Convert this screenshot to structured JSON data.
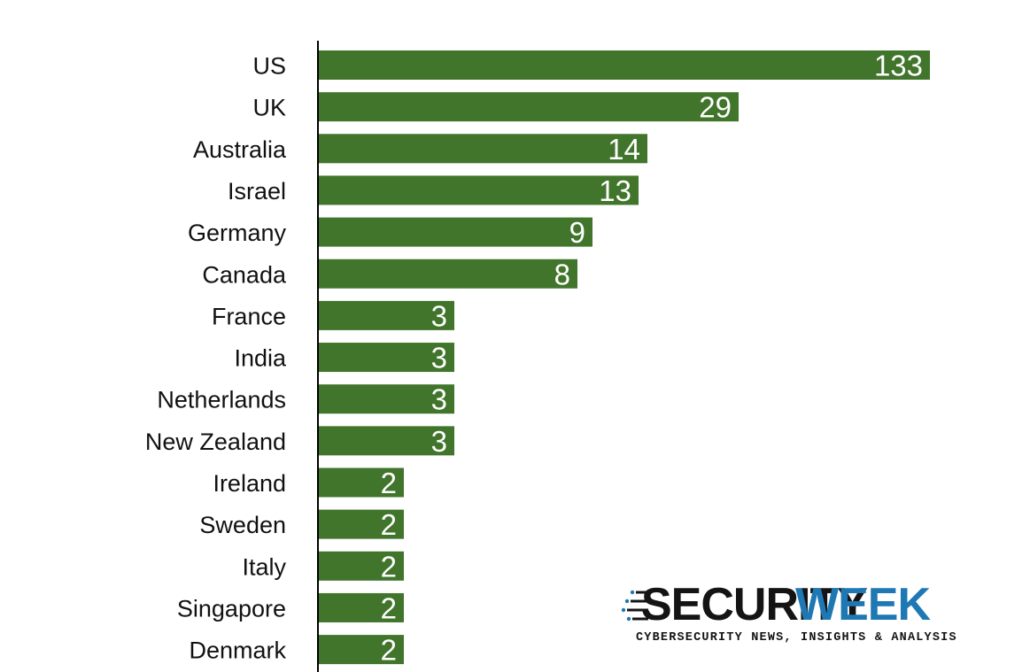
{
  "chart_data": {
    "type": "bar",
    "orientation": "horizontal",
    "categories": [
      "US",
      "UK",
      "Australia",
      "Israel",
      "Germany",
      "Canada",
      "France",
      "India",
      "Netherlands",
      "New Zealand",
      "Ireland",
      "Sweden",
      "Italy",
      "Singapore",
      "Denmark"
    ],
    "values": [
      133,
      29,
      14,
      13,
      9,
      8,
      3,
      3,
      3,
      3,
      2,
      2,
      2,
      2,
      2
    ],
    "bar_color": "#41752b",
    "value_label_color": "#ffffff",
    "axis_color": "#000000",
    "title": "",
    "xlabel": "",
    "ylabel": "",
    "grid": false
  },
  "logo": {
    "word_security": "SECURITY",
    "word_week": "WEEK",
    "tagline": "CYBERSECURITY NEWS, INSIGHTS & ANALYSIS",
    "colors": {
      "security": "#141414",
      "week": "#1e78b4"
    }
  }
}
